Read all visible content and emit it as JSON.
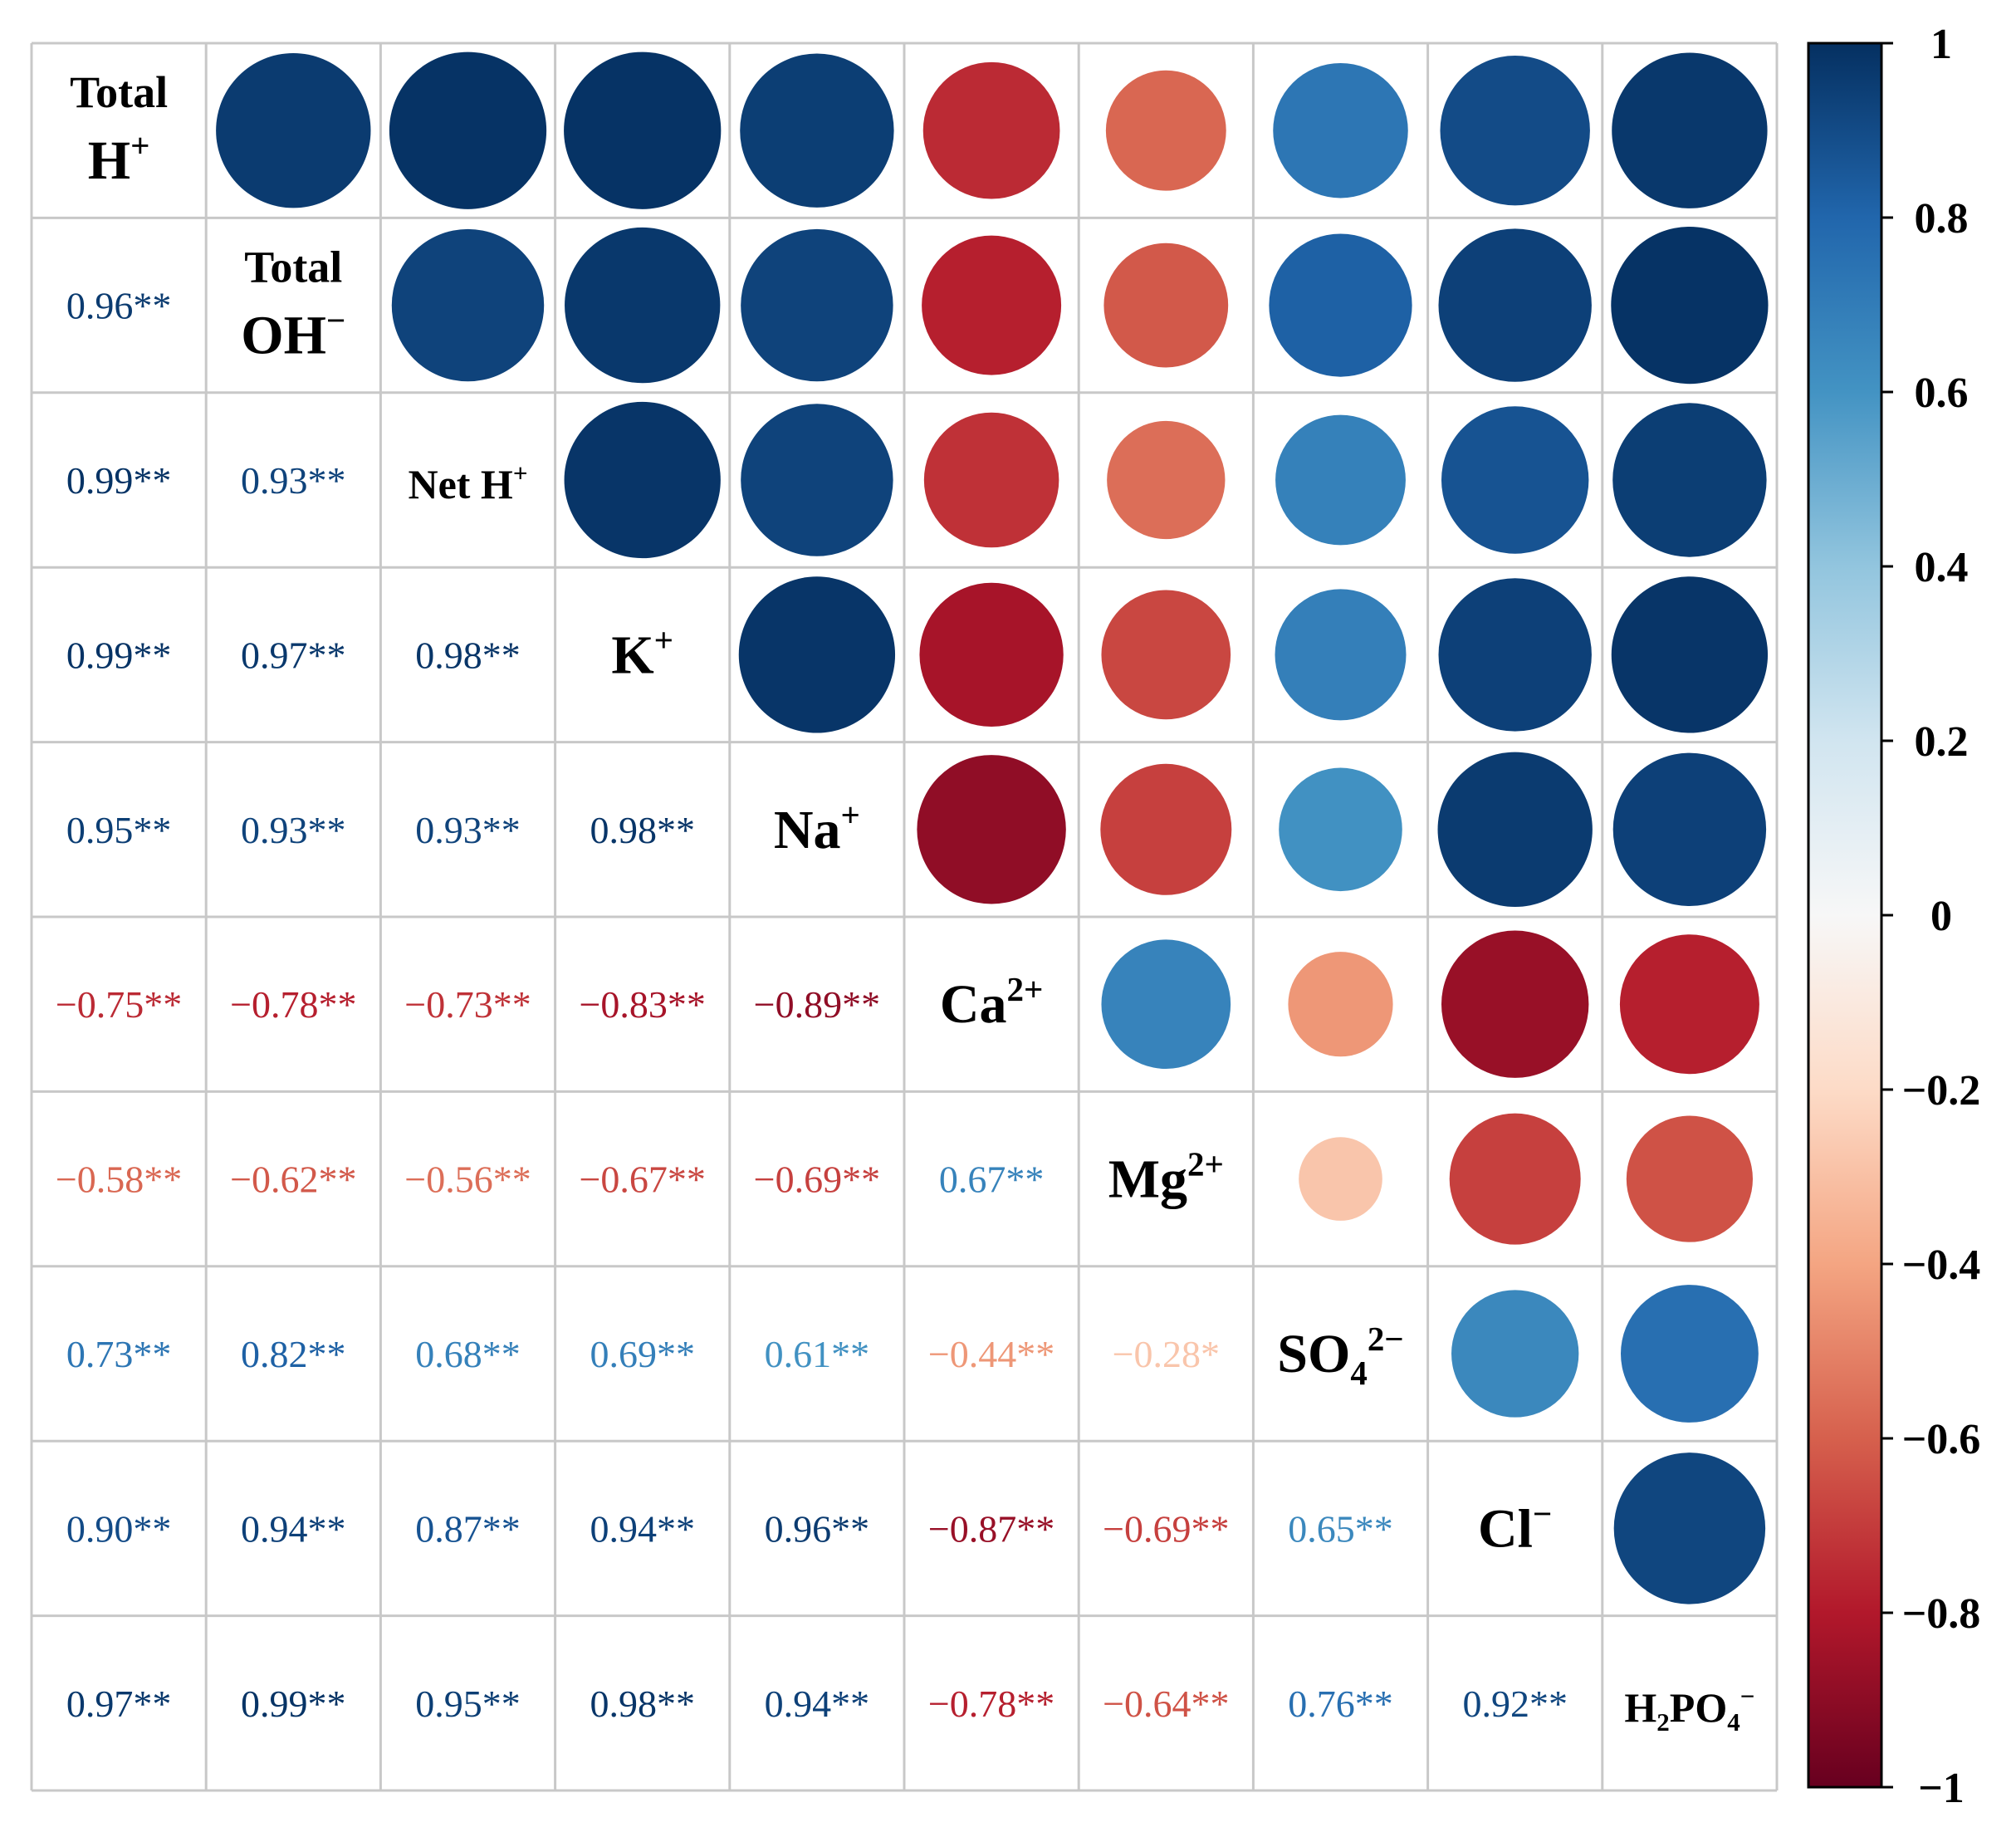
{
  "chart_data": {
    "type": "heatmap",
    "subtype": "correlation-matrix",
    "variables": [
      {
        "id": "totalH",
        "parts": [
          {
            "t": "Total",
            "s": "line1"
          },
          {
            "t": "H"
          },
          {
            "t": "+",
            "s": "sup"
          }
        ]
      },
      {
        "id": "totalOH",
        "parts": [
          {
            "t": "Total",
            "s": "line1"
          },
          {
            "t": "OH"
          },
          {
            "t": "−",
            "s": "sup"
          }
        ]
      },
      {
        "id": "netH",
        "parts": [
          {
            "t": "Net H"
          },
          {
            "t": "+",
            "s": "sup"
          }
        ]
      },
      {
        "id": "K",
        "parts": [
          {
            "t": "K"
          },
          {
            "t": "+",
            "s": "sup"
          }
        ]
      },
      {
        "id": "Na",
        "parts": [
          {
            "t": "Na"
          },
          {
            "t": "+",
            "s": "sup"
          }
        ]
      },
      {
        "id": "Ca",
        "parts": [
          {
            "t": "Ca"
          },
          {
            "t": "2+",
            "s": "sup"
          }
        ]
      },
      {
        "id": "Mg",
        "parts": [
          {
            "t": "Mg"
          },
          {
            "t": "2+",
            "s": "sup"
          }
        ]
      },
      {
        "id": "SO4",
        "parts": [
          {
            "t": "SO"
          },
          {
            "t": "4",
            "s": "sub"
          },
          {
            "t": "2−",
            "s": "sup"
          }
        ]
      },
      {
        "id": "Cl",
        "parts": [
          {
            "t": "Cl"
          },
          {
            "t": "−",
            "s": "sup"
          }
        ]
      },
      {
        "id": "H2PO4",
        "parts": [
          {
            "t": "H"
          },
          {
            "t": "2",
            "s": "sub"
          },
          {
            "t": "PO"
          },
          {
            "t": "4",
            "s": "sub"
          },
          {
            "t": "−",
            "s": "sup"
          }
        ]
      }
    ],
    "matrix": [
      [
        1,
        0.96,
        0.99,
        0.99,
        0.95,
        -0.75,
        -0.58,
        0.73,
        0.9,
        0.97
      ],
      [
        0.96,
        1,
        0.93,
        0.97,
        0.93,
        -0.78,
        -0.62,
        0.82,
        0.94,
        0.99
      ],
      [
        0.99,
        0.93,
        1,
        0.98,
        0.93,
        -0.73,
        -0.56,
        0.68,
        0.87,
        0.95
      ],
      [
        0.99,
        0.97,
        0.98,
        1,
        0.98,
        -0.83,
        -0.67,
        0.69,
        0.94,
        0.98
      ],
      [
        0.95,
        0.93,
        0.93,
        0.98,
        1,
        -0.89,
        -0.69,
        0.61,
        0.96,
        0.94
      ],
      [
        -0.75,
        -0.78,
        -0.73,
        -0.83,
        -0.89,
        1,
        0.67,
        -0.44,
        -0.87,
        -0.78
      ],
      [
        -0.58,
        -0.62,
        -0.56,
        -0.67,
        -0.69,
        0.67,
        1,
        -0.28,
        -0.69,
        -0.64
      ],
      [
        0.73,
        0.82,
        0.68,
        0.69,
        0.61,
        -0.44,
        -0.28,
        1,
        0.65,
        0.76
      ],
      [
        0.9,
        0.94,
        0.87,
        0.94,
        0.96,
        -0.87,
        -0.69,
        0.65,
        1,
        0.92
      ],
      [
        0.97,
        0.99,
        0.95,
        0.98,
        0.94,
        -0.78,
        -0.64,
        0.76,
        0.92,
        1
      ]
    ],
    "lower_labels": [
      [],
      [
        "0.96**"
      ],
      [
        "0.99**",
        "0.93**"
      ],
      [
        "0.99**",
        "0.97**",
        "0.98**"
      ],
      [
        "0.95**",
        "0.93**",
        "0.93**",
        "0.98**"
      ],
      [
        "−0.75**",
        "−0.78**",
        "−0.73**",
        "−0.83**",
        "−0.89**"
      ],
      [
        "−0.58**",
        "−0.62**",
        "−0.56**",
        "−0.67**",
        "−0.69**",
        "0.67**"
      ],
      [
        "0.73**",
        "0.82**",
        "0.68**",
        "0.69**",
        "0.61**",
        "−0.44**",
        "−0.28*"
      ],
      [
        "0.90**",
        "0.94**",
        "0.87**",
        "0.94**",
        "0.96**",
        "−0.87**",
        "−0.69**",
        "0.65**"
      ],
      [
        "0.97**",
        "0.99**",
        "0.95**",
        "0.98**",
        "0.94**",
        "−0.78**",
        "−0.64**",
        "0.76**",
        "0.92**"
      ]
    ],
    "upper_display": "circle",
    "lower_display": "number",
    "colorbar": {
      "range": [
        -1,
        1
      ],
      "ticks": [
        1,
        0.8,
        0.6,
        0.4,
        0.2,
        0,
        -0.2,
        -0.4,
        -0.6,
        -0.8,
        -1
      ],
      "tick_labels": [
        "1",
        "0.8",
        "0.6",
        "0.4",
        "0.2",
        "0",
        "−0.2",
        "−0.4",
        "−0.6",
        "−0.8",
        "−1"
      ],
      "colormap": "RdBu",
      "stops": [
        "#67001f",
        "#b2182b",
        "#d6604d",
        "#f4a582",
        "#fddbc7",
        "#f7f7f7",
        "#d1e5f0",
        "#92c5de",
        "#4393c3",
        "#2166ac",
        "#053061"
      ]
    },
    "grid_color": "#c8c8c8"
  }
}
